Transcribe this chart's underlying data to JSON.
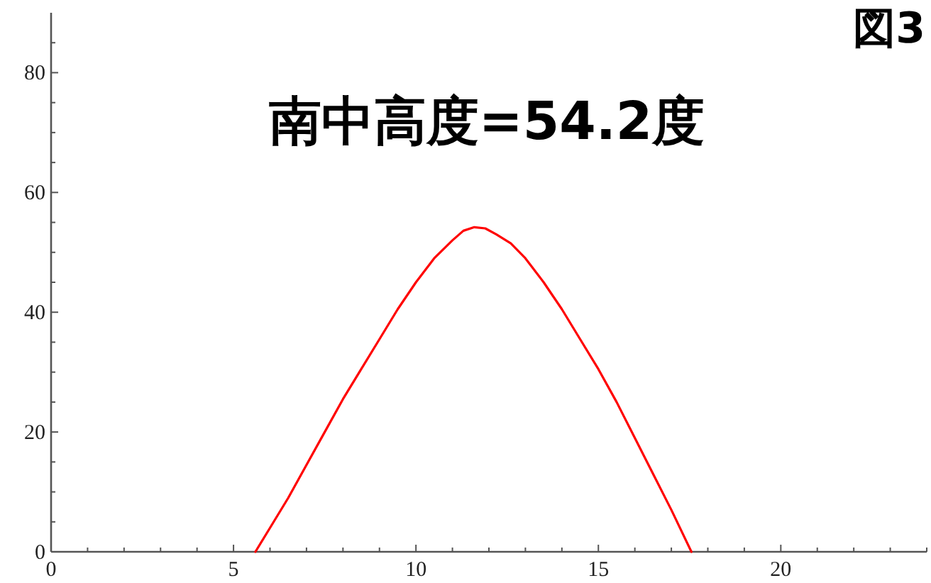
{
  "chart_data": {
    "type": "line",
    "title": "南中高度=54.2度",
    "annotations": [
      "図3"
    ],
    "xlim": [
      0,
      24
    ],
    "xticks": [
      0,
      {
        "value": 1,
        "label": null
      },
      {
        "value": 2,
        "label": null
      },
      {
        "value": 3,
        "label": null
      },
      {
        "value": 4,
        "label": null
      },
      5,
      {
        "value": 6,
        "label": null
      },
      {
        "value": 7,
        "label": null
      },
      {
        "value": 8,
        "label": null
      },
      {
        "value": 9,
        "label": null
      },
      10,
      {
        "value": 11,
        "label": null
      },
      {
        "value": 12,
        "label": null
      },
      {
        "value": 13,
        "label": null
      },
      {
        "value": 14,
        "label": null
      },
      15,
      {
        "value": 16,
        "label": null
      },
      {
        "value": 17,
        "label": null
      },
      {
        "value": 18,
        "label": null
      },
      {
        "value": 19,
        "label": null
      },
      20,
      {
        "value": 21,
        "label": null
      },
      {
        "value": 22,
        "label": null
      },
      {
        "value": 23,
        "label": null
      },
      {
        "value": 24,
        "label": null
      }
    ],
    "ylim": [
      0,
      90
    ],
    "yticks": [
      0,
      {
        "value": 5,
        "label": null
      },
      {
        "value": 10,
        "label": null
      },
      {
        "value": 15,
        "label": null
      },
      20,
      {
        "value": 25,
        "label": null
      },
      {
        "value": 30,
        "label": null
      },
      {
        "value": 35,
        "label": null
      },
      40,
      {
        "value": 45,
        "label": null
      },
      {
        "value": 50,
        "label": null
      },
      {
        "value": 55,
        "label": null
      },
      60,
      {
        "value": 65,
        "label": null
      },
      {
        "value": 70,
        "label": null
      },
      {
        "value": 75,
        "label": null
      },
      80,
      {
        "value": 85,
        "label": null
      }
    ],
    "grid": false,
    "marker": "none",
    "line_style": "solid",
    "series": [
      {
        "color": "#ff0000",
        "x": [
          5.6,
          6,
          6.5,
          7,
          7.5,
          8,
          8.5,
          9,
          9.5,
          10,
          10.5,
          11,
          11.3,
          11.6,
          11.9,
          12.2,
          12.6,
          13,
          13.5,
          14,
          14.5,
          15,
          15.5,
          16,
          16.5,
          17,
          17.55
        ],
        "values": [
          0,
          4,
          9,
          14.5,
          20,
          25.5,
          30.5,
          35.5,
          40.5,
          45,
          49,
          52,
          53.6,
          54.2,
          54,
          53,
          51.5,
          49,
          45,
          40.5,
          35.5,
          30.5,
          25,
          19,
          13,
          7,
          0
        ]
      }
    ]
  }
}
